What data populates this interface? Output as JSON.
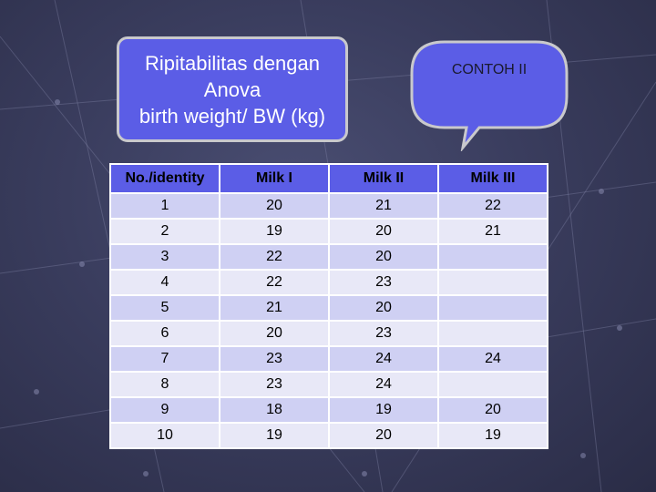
{
  "title": {
    "line1": "Ripitabilitas dengan",
    "line2": "Anova",
    "line3": "birth weight/ BW (kg)"
  },
  "callout": {
    "label": "CONTOH II"
  },
  "table": {
    "headers": [
      "No./identity",
      "Milk I",
      "Milk II",
      "Milk III"
    ],
    "rows": [
      [
        "1",
        "20",
        "21",
        "22"
      ],
      [
        "2",
        "19",
        "20",
        "21"
      ],
      [
        "3",
        "22",
        "20",
        ""
      ],
      [
        "4",
        "22",
        "23",
        ""
      ],
      [
        "5",
        "21",
        "20",
        ""
      ],
      [
        "6",
        "20",
        "23",
        ""
      ],
      [
        "7",
        "23",
        "24",
        "24"
      ],
      [
        "8",
        "23",
        "24",
        ""
      ],
      [
        "9",
        "18",
        "19",
        "20"
      ],
      [
        "10",
        "19",
        "20",
        "19"
      ]
    ]
  },
  "colors": {
    "accent": "#5b5de6",
    "row_odd": "#cfd0f3",
    "row_even": "#e8e8f7",
    "callout_fill": "#5b5de6"
  }
}
